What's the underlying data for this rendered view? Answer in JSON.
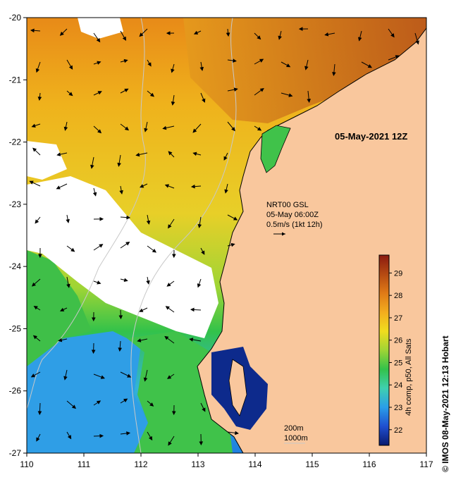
{
  "map": {
    "date_label": "05-May-2021 12Z",
    "current_info": {
      "line1": "NRT00 GSL",
      "line2": "05-May 06:00Z",
      "line3": "0.5m/s (1kt 12h)"
    },
    "depth_labels": [
      "200m",
      "1000m"
    ],
    "lon_ticks": [
      "110",
      "111",
      "112",
      "113",
      "114",
      "115",
      "116",
      "117"
    ],
    "lat_ticks": [
      "-20",
      "-21",
      "-22",
      "-23",
      "-24",
      "-25",
      "-26",
      "-27"
    ],
    "lon_range": [
      110,
      117
    ],
    "lat_range": [
      -27,
      -20
    ],
    "colorbar": {
      "label": "4h comp, p50, All Sats",
      "ticks": [
        "22",
        "23",
        "24",
        "25",
        "26",
        "27",
        "28",
        "29"
      ],
      "range": [
        21.3,
        29.8
      ],
      "colors": [
        "#0a1a6e",
        "#1f4fd0",
        "#2a9ee8",
        "#3fd0b0",
        "#33c24a",
        "#9fd535",
        "#f0dc1e",
        "#f2ad1e",
        "#e07a17",
        "#b54a12",
        "#8b1a10"
      ]
    },
    "credit": "© IMOS 08-May-2021 12:13 Hobart",
    "colors": {
      "land": "#f9c79d",
      "cloud": "#ffffff",
      "coast": "#000000",
      "contour": "#c8c8c8"
    }
  }
}
